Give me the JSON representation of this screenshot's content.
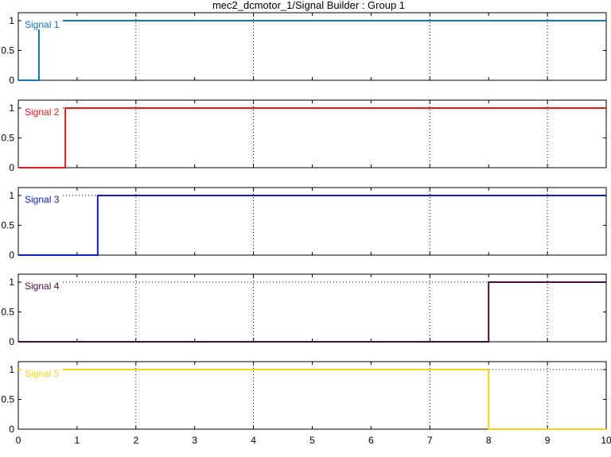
{
  "window": {
    "title": "mec2_dcmotor_1/Signal Builder : Group 1"
  },
  "chart_data": {
    "type": "line",
    "title": "mec2_dcmotor_1/Signal Builder : Group 1",
    "xlabel": "",
    "ylabel": "",
    "xlim": [
      0,
      10
    ],
    "ylim": [
      0,
      1
    ],
    "x_ticks": [
      "0",
      "1",
      "2",
      "3",
      "4",
      "5",
      "6",
      "7",
      "8",
      "9",
      "10"
    ],
    "y_ticks": [
      "0",
      "0.5",
      "1"
    ],
    "grid": "dotted vertical at 2, 4, 7, 9; dotted horizontal at 1",
    "series": [
      {
        "name": "Signal 1",
        "color": "#1173b2",
        "x": [
          0,
          0.35,
          0.35,
          10
        ],
        "y": [
          0,
          0,
          1,
          1
        ]
      },
      {
        "name": "Signal 2",
        "color": "#e01c1c",
        "x": [
          0,
          0.8,
          0.8,
          10
        ],
        "y": [
          0,
          0,
          1,
          1
        ]
      },
      {
        "name": "Signal 3",
        "color": "#0b1fb5",
        "x": [
          0,
          1.35,
          1.35,
          10
        ],
        "y": [
          0,
          0,
          1,
          1
        ]
      },
      {
        "name": "Signal 4",
        "color": "#4a0f3a",
        "x": [
          0,
          8,
          8,
          10
        ],
        "y": [
          0,
          0,
          1,
          1
        ]
      },
      {
        "name": "Signal 5",
        "color": "#f2d51a",
        "x": [
          0,
          8,
          8,
          10
        ],
        "y": [
          1,
          1,
          0,
          0
        ]
      }
    ]
  }
}
